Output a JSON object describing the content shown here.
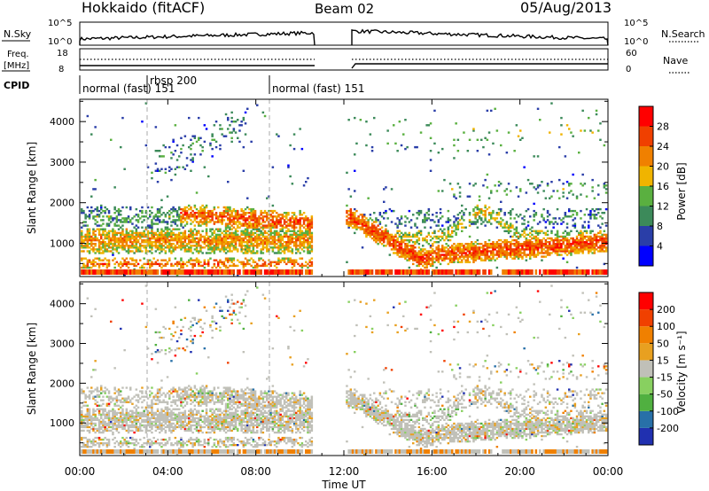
{
  "header": {
    "station": "Hokkaido (fitACF)",
    "beam": "Beam 02",
    "date": "05/Aug/2013"
  },
  "aux_panels": {
    "nsky": {
      "label": "N.Sky",
      "ticks": [
        "10^5",
        "10^0"
      ],
      "right_label": "N.Search",
      "right_ticks": [
        "10^5",
        "10^0"
      ]
    },
    "freq": {
      "label_line1": "Freq.",
      "label_line2": "[MHz]",
      "ticks": [
        "18",
        "8"
      ],
      "right_label": "Nave",
      "right_ticks": [
        "60",
        "0"
      ]
    },
    "cpid": {
      "label": "CPID",
      "segments": [
        {
          "label": "normal (fast) 151"
        },
        {
          "label": "rbsp 200"
        },
        {
          "label": "normal (fast) 151"
        }
      ]
    }
  },
  "colors": {
    "power_scale": [
      "#0000ff",
      "#2a3ea8",
      "#3c8a5a",
      "#5ab040",
      "#f0b400",
      "#f08000",
      "#f04000",
      "#ff0000"
    ],
    "velocity_scale": [
      "#2030b0",
      "#2870a8",
      "#50b040",
      "#88d060",
      "#c0c0b8",
      "#e8a020",
      "#f08000",
      "#f04000",
      "#ff0000"
    ]
  },
  "chart_data": [
    {
      "type": "heatmap",
      "name": "power",
      "ylabel": "Slant Range [km]",
      "yticks": [
        "1000",
        "2000",
        "3000",
        "4000"
      ],
      "ylim": [
        180,
        4550
      ],
      "xlim": [
        0,
        24
      ],
      "data_gap": [
        10.5,
        12.0
      ],
      "colorbar": {
        "label": "Power [dB]",
        "ticks": [
          "4",
          "8",
          "12",
          "16",
          "20",
          "24",
          "28"
        ],
        "range": [
          0,
          32
        ]
      }
    },
    {
      "type": "heatmap",
      "name": "velocity",
      "ylabel": "Slant Range [km]",
      "yticks": [
        "1000",
        "2000",
        "3000",
        "4000"
      ],
      "ylim": [
        180,
        4550
      ],
      "xlim": [
        0,
        24
      ],
      "data_gap": [
        10.5,
        12.0
      ],
      "colorbar": {
        "label": "Velocity [m s⁻¹]",
        "ticks": [
          "200",
          "100",
          "50",
          "15",
          "-15",
          "-50",
          "-100",
          "-200"
        ]
      }
    }
  ],
  "xaxis": {
    "label": "Time UT",
    "ticks": [
      "00:00",
      "04:00",
      "08:00",
      "12:00",
      "16:00",
      "20:00",
      "00:00"
    ],
    "tick_hours": [
      0,
      4,
      8,
      12,
      16,
      20,
      24
    ]
  }
}
